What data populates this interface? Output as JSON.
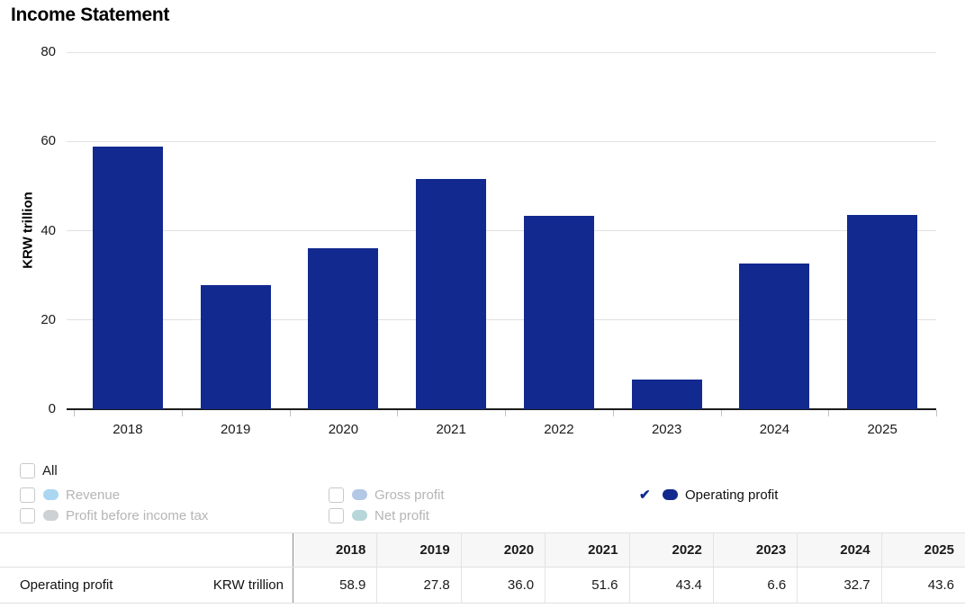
{
  "title": "Income Statement",
  "chart_data": {
    "type": "bar",
    "title": "Income Statement",
    "ylabel": "KRW trillion",
    "xlabel": "",
    "ylim": [
      0,
      80
    ],
    "yticks": [
      0,
      20,
      40,
      60,
      80
    ],
    "grid": true,
    "legend_position": "below",
    "categories": [
      "2018",
      "2019",
      "2020",
      "2021",
      "2022",
      "2023",
      "2024",
      "2025"
    ],
    "series": [
      {
        "name": "Operating profit",
        "color": "#12298f",
        "values": [
          58.9,
          27.8,
          36.0,
          51.6,
          43.4,
          6.6,
          32.7,
          43.6
        ]
      }
    ]
  },
  "legend": {
    "all": {
      "label": "All",
      "checked": false
    },
    "items": [
      {
        "label": "Revenue",
        "checked": false,
        "swatch": "#aad6f2"
      },
      {
        "label": "Gross profit",
        "checked": false,
        "swatch": "#b3c7e6"
      },
      {
        "label": "Operating profit",
        "checked": true,
        "swatch": "#12298f"
      },
      {
        "label": "Profit before income tax",
        "checked": false,
        "swatch": "#cdd1d3"
      },
      {
        "label": "Net profit",
        "checked": false,
        "swatch": "#b7d6d9"
      }
    ]
  },
  "table": {
    "columns": [
      "2018",
      "2019",
      "2020",
      "2021",
      "2022",
      "2023",
      "2024",
      "2025"
    ],
    "rows": [
      {
        "label": "Operating profit",
        "unit": "KRW trillion",
        "values": [
          "58.9",
          "27.8",
          "36.0",
          "51.6",
          "43.4",
          "6.6",
          "32.7",
          "43.6"
        ]
      }
    ]
  },
  "colors": {
    "bar": "#12298f",
    "axis": "#1a1a1a",
    "gridline": "#e1e1e1",
    "tick": "#c3c3c3",
    "legend_text_inactive": "#b5b5b5",
    "legend_text_active": "#111111",
    "checkmark": "#12298f",
    "table_header_bg": "#f7f7f7",
    "table_border": "#e0e0e0",
    "table_divider": "#909090"
  }
}
